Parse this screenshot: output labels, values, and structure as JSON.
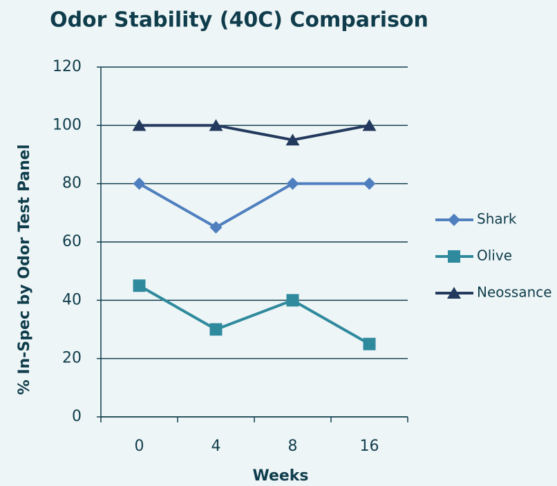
{
  "chart_data": {
    "type": "line",
    "title": "Odor Stability (40C) Comparison",
    "x_label": "Weeks",
    "y_label": "% In-Spec by Odor Test Panel",
    "categories": [
      "0",
      "4",
      "8",
      "16"
    ],
    "series": [
      {
        "name": "Shark",
        "color": "#4f7fbf",
        "marker": "diamond",
        "values": [
          80,
          65,
          80,
          80
        ]
      },
      {
        "name": "Olive",
        "color": "#2f8a9d",
        "marker": "square",
        "values": [
          45,
          30,
          40,
          25
        ]
      },
      {
        "name": "Neossance",
        "color": "#233a5e",
        "marker": "triangle",
        "values": [
          100,
          100,
          95,
          100
        ]
      }
    ],
    "ylim": [
      0,
      120
    ],
    "yticks": [
      0,
      20,
      40,
      60,
      80,
      100,
      120
    ],
    "grid": true,
    "legend": "right"
  }
}
